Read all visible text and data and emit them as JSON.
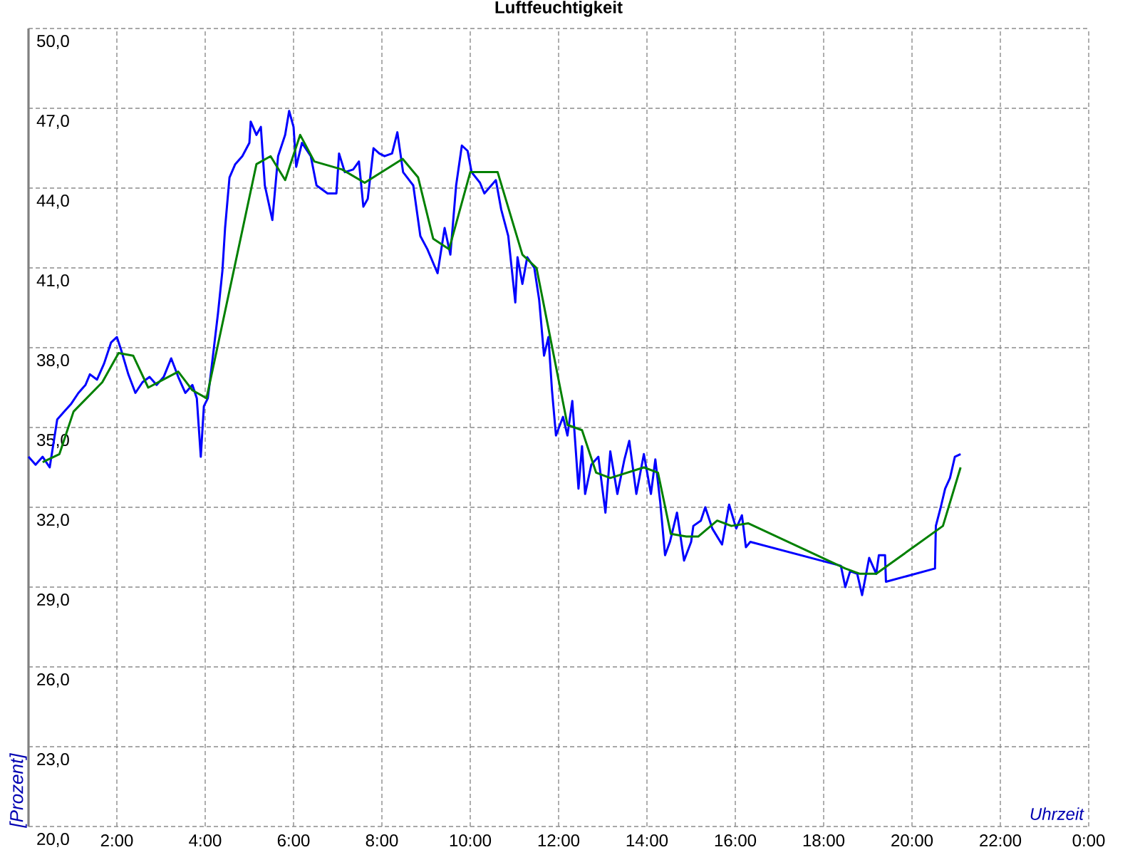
{
  "chart_data": {
    "type": "line",
    "title": "Luftfeuchtigkeit",
    "xlabel": "Uhrzeit",
    "ylabel": "[Prozent]",
    "xlim": [
      0,
      24
    ],
    "ylim": [
      20,
      50
    ],
    "xticks": [
      {
        "value": 0,
        "label": null
      },
      {
        "value": 2,
        "label": "2:00"
      },
      {
        "value": 4,
        "label": "4:00"
      },
      {
        "value": 6,
        "label": "6:00"
      },
      {
        "value": 8,
        "label": "8:00"
      },
      {
        "value": 10,
        "label": "10:00"
      },
      {
        "value": 12,
        "label": "12:00"
      },
      {
        "value": 14,
        "label": "14:00"
      },
      {
        "value": 16,
        "label": "16:00"
      },
      {
        "value": 18,
        "label": "18:00"
      },
      {
        "value": 20,
        "label": "20:00"
      },
      {
        "value": 22,
        "label": "22:00"
      },
      {
        "value": 24,
        "label": "0:00"
      }
    ],
    "yticks": [
      {
        "value": 20,
        "label": "20,0"
      },
      {
        "value": 23,
        "label": "23,0"
      },
      {
        "value": 26,
        "label": "26,0"
      },
      {
        "value": 29,
        "label": "29,0"
      },
      {
        "value": 32,
        "label": "32,0"
      },
      {
        "value": 35,
        "label": "35,0"
      },
      {
        "value": 38,
        "label": "38,0"
      },
      {
        "value": 41,
        "label": "41,0"
      },
      {
        "value": 44,
        "label": "44,0"
      },
      {
        "value": 47,
        "label": "47,0"
      },
      {
        "value": 50,
        "label": "50,0"
      }
    ],
    "grid": true,
    "series": [
      {
        "color": "#0000ff",
        "x": [
          0.0,
          0.16,
          0.32,
          0.48,
          0.65,
          0.81,
          0.97,
          1.13,
          1.29,
          1.39,
          1.55,
          1.71,
          1.87,
          2.0,
          2.1,
          2.26,
          2.42,
          2.58,
          2.74,
          2.9,
          3.06,
          3.23,
          3.39,
          3.55,
          3.71,
          3.81,
          3.9,
          3.97,
          4.06,
          4.19,
          4.29,
          4.39,
          4.45,
          4.55,
          4.68,
          4.84,
          5.0,
          5.03,
          5.16,
          5.26,
          5.35,
          5.52,
          5.65,
          5.81,
          5.9,
          6.0,
          6.06,
          6.19,
          6.39,
          6.52,
          6.77,
          6.97,
          7.03,
          7.16,
          7.35,
          7.48,
          7.58,
          7.68,
          7.81,
          7.94,
          8.06,
          8.23,
          8.35,
          8.48,
          8.71,
          8.87,
          9.03,
          9.26,
          9.42,
          9.55,
          9.68,
          9.81,
          9.94,
          10.03,
          10.22,
          10.32,
          10.58,
          10.7,
          10.86,
          11.02,
          11.07,
          11.18,
          11.29,
          11.45,
          11.56,
          11.67,
          11.77,
          11.85,
          11.94,
          12.1,
          12.2,
          12.31,
          12.45,
          12.53,
          12.6,
          12.74,
          12.9,
          13.06,
          13.17,
          13.33,
          13.49,
          13.6,
          13.76,
          13.93,
          14.09,
          14.19,
          14.3,
          14.41,
          14.52,
          14.68,
          14.84,
          15.0,
          15.05,
          15.22,
          15.32,
          15.48,
          15.7,
          15.86,
          16.02,
          16.15,
          16.24,
          16.34,
          18.39,
          18.49,
          18.6,
          18.76,
          18.87,
          19.03,
          19.19,
          19.25,
          19.39,
          19.41,
          20.52,
          20.54,
          20.65,
          20.75,
          20.86,
          20.97,
          21.1
        ],
        "values": [
          33.9,
          33.6,
          33.9,
          33.5,
          35.3,
          35.6,
          35.9,
          36.3,
          36.6,
          37.0,
          36.8,
          37.4,
          38.2,
          38.4,
          37.9,
          37.0,
          36.3,
          36.7,
          36.9,
          36.6,
          36.9,
          37.6,
          36.9,
          36.3,
          36.6,
          36.1,
          33.9,
          35.8,
          36.1,
          37.9,
          39.3,
          40.9,
          42.5,
          44.4,
          44.9,
          45.2,
          45.7,
          46.5,
          46.0,
          46.3,
          44.1,
          42.8,
          45.2,
          46.0,
          46.9,
          46.3,
          44.8,
          45.7,
          45.2,
          44.1,
          43.8,
          43.8,
          45.3,
          44.6,
          44.7,
          45.0,
          43.3,
          43.6,
          45.5,
          45.3,
          45.2,
          45.3,
          46.1,
          44.6,
          44.1,
          42.2,
          41.7,
          40.8,
          42.5,
          41.5,
          44.1,
          45.6,
          45.4,
          44.6,
          44.2,
          43.8,
          44.3,
          43.2,
          42.2,
          39.7,
          41.4,
          40.4,
          41.4,
          41.0,
          39.8,
          37.7,
          38.4,
          36.4,
          34.7,
          35.4,
          34.7,
          36.0,
          32.7,
          34.3,
          32.5,
          33.6,
          33.9,
          31.8,
          34.1,
          32.5,
          33.8,
          34.5,
          32.5,
          34.0,
          32.5,
          33.8,
          32.2,
          30.2,
          30.7,
          31.8,
          30.0,
          30.7,
          31.3,
          31.5,
          32.0,
          31.2,
          30.6,
          32.1,
          31.2,
          31.7,
          30.5,
          30.7,
          29.8,
          29.0,
          29.6,
          29.5,
          28.7,
          30.1,
          29.5,
          30.2,
          30.2,
          29.2,
          29.7,
          31.3,
          32.0,
          32.7,
          33.1,
          33.9,
          34.0
        ]
      },
      {
        "color": "#008000",
        "x": [
          0.32,
          0.7,
          1.02,
          1.67,
          2.04,
          2.37,
          2.71,
          3.39,
          3.71,
          4.03,
          5.16,
          5.48,
          5.81,
          6.15,
          6.47,
          7.1,
          7.61,
          8.47,
          8.82,
          9.16,
          9.52,
          10.0,
          10.62,
          11.18,
          11.5,
          12.2,
          12.53,
          12.85,
          13.17,
          13.93,
          14.25,
          14.54,
          14.89,
          15.16,
          15.59,
          15.91,
          16.29,
          18.49,
          18.82,
          19.19,
          20.7,
          21.1
        ],
        "values": [
          33.7,
          34.0,
          35.6,
          36.7,
          37.8,
          37.7,
          36.5,
          37.1,
          36.4,
          36.1,
          44.9,
          45.2,
          44.3,
          46.0,
          45.0,
          44.7,
          44.2,
          45.1,
          44.4,
          42.1,
          41.7,
          44.6,
          44.6,
          41.5,
          41.0,
          35.1,
          34.9,
          33.3,
          33.1,
          33.5,
          33.3,
          31.0,
          30.9,
          30.9,
          31.5,
          31.3,
          31.4,
          29.7,
          29.5,
          29.5,
          31.3,
          33.5
        ]
      }
    ]
  }
}
